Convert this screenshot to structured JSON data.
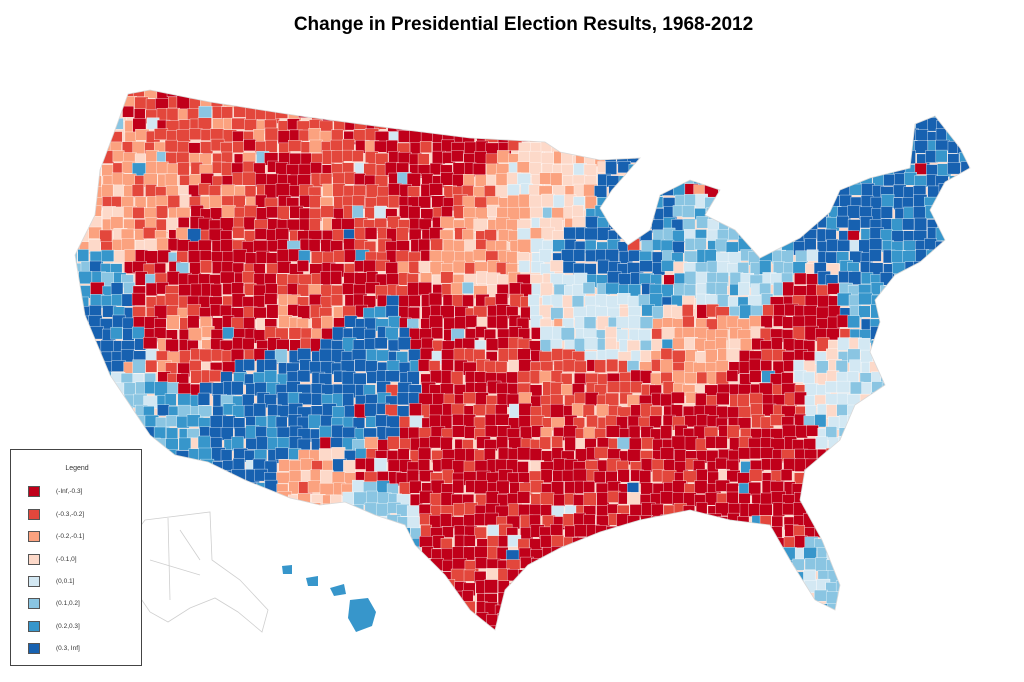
{
  "title": "Change in Presidential Election Results, 1968-2012",
  "legend": {
    "title": "Legend",
    "items": [
      {
        "label": "(-Inf,-0.3]",
        "color": "#c0001a"
      },
      {
        "label": "(-0.3,-0.2]",
        "color": "#e3473c"
      },
      {
        "label": "(-0.2,-0.1]",
        "color": "#fba27f"
      },
      {
        "label": "(-0.1,0]",
        "color": "#fdd9c9"
      },
      {
        "label": "(0,0.1]",
        "color": "#d3e8f3"
      },
      {
        "label": "(0.1,0.2]",
        "color": "#8ac5e2"
      },
      {
        "label": "(0.2,0.3]",
        "color": "#3796cb"
      },
      {
        "label": "(0.3, Inf]",
        "color": "#1761b0"
      }
    ]
  },
  "regions": [
    {
      "name": "pacific-northwest",
      "class": 2
    },
    {
      "name": "west-coast",
      "class": 7
    },
    {
      "name": "great-basin",
      "class": 0
    },
    {
      "name": "southwest",
      "class": 7
    },
    {
      "name": "northern-plains",
      "class": 0
    },
    {
      "name": "southern-plains",
      "class": 0
    },
    {
      "name": "midwest",
      "class": 7
    },
    {
      "name": "appalachia",
      "class": 0
    },
    {
      "name": "deep-south",
      "class": 0
    },
    {
      "name": "northeast",
      "class": 7
    },
    {
      "name": "florida",
      "class": 5
    },
    {
      "name": "alaska",
      "class": -1
    },
    {
      "name": "hawaii",
      "class": 6
    }
  ]
}
